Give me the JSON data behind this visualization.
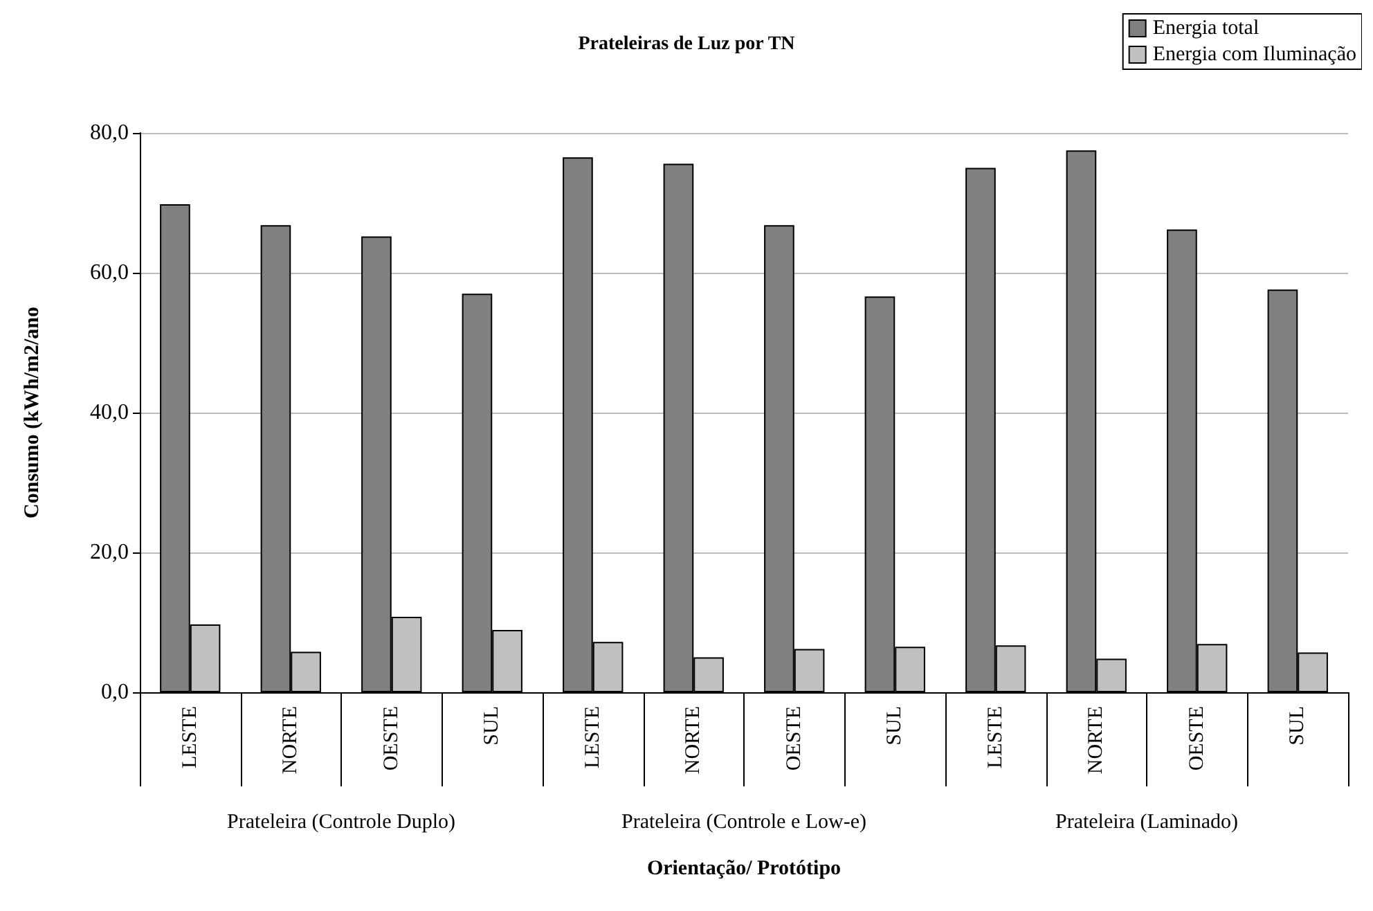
{
  "chart_data": {
    "type": "bar",
    "title": "Prateleiras de Luz por TN",
    "xlabel": "Orientação/ Protótipo",
    "ylabel": "Consumo (kWh/m2/ano",
    "categories": [
      "LESTE",
      "NORTE",
      "OESTE",
      "SUL",
      "LESTE",
      "NORTE",
      "OESTE",
      "SUL",
      "LESTE",
      "NORTE",
      "OESTE",
      "SUL"
    ],
    "series": [
      {
        "name": "Energia total",
        "color": "#808080",
        "values": [
          69.8,
          66.8,
          65.2,
          57.0,
          76.5,
          75.6,
          66.8,
          56.6,
          75.0,
          77.5,
          66.2,
          57.6
        ]
      },
      {
        "name": "Energia com Iluminação",
        "color": "#c0c0c0",
        "values": [
          9.7,
          5.8,
          10.8,
          8.9,
          7.2,
          5.0,
          6.2,
          6.5,
          6.7,
          4.8,
          6.9,
          5.7
        ]
      }
    ],
    "annotations": [
      "Prateleira (Controle Duplo)",
      "Prateleira (Controle e Low-e)",
      "Prateleira (Laminado)"
    ],
    "ylim": [
      0,
      80
    ],
    "yticks": [
      {
        "value": 0,
        "label": "0,0"
      },
      {
        "value": 20,
        "label": "20,0"
      },
      {
        "value": 40,
        "label": "40,0"
      },
      {
        "value": 60,
        "label": "60,0"
      },
      {
        "value": 80,
        "label": "80,0"
      }
    ],
    "grid": "y",
    "legend": "top right"
  }
}
